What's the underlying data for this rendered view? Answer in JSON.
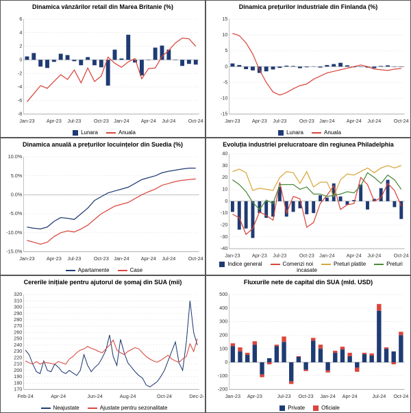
{
  "background": "#ffffff",
  "border": "#555555",
  "grid_color": "#dddddd",
  "axis_color": "#888888",
  "title_fontsize": 9,
  "tick_fontsize": 7,
  "charts": [
    {
      "title": "Dinamica vânzărilor retail din Marea Britanie (%)",
      "x_labels": [
        "Jan-23",
        "Apr-23",
        "Jul-23",
        "Oct-23",
        "Jan-24",
        "Apr-24",
        "Jul-24",
        "Oct-24"
      ],
      "ylim": [
        -8,
        6
      ],
      "ytick_step": 2,
      "bars": {
        "name": "Lunara",
        "color": "#1f3b73",
        "width": 0.6,
        "values": [
          0.5,
          1.0,
          -1.0,
          -1.2,
          -0.3,
          0.9,
          0.7,
          -0.2,
          -0.8,
          0.4,
          -0.8,
          -1.1,
          -3.8,
          1.5,
          0.2,
          3.7,
          -0.4,
          -2.3,
          0.0,
          1.8,
          2.1,
          1.5,
          0.0,
          -0.9,
          -0.6,
          -0.7
        ]
      },
      "lines": [
        {
          "name": "Anuala",
          "color": "#d9463d",
          "width": 1.2,
          "values": [
            -6.2,
            -5.0,
            -3.8,
            -4.2,
            -3.2,
            -2.2,
            -2.9,
            -1.5,
            -3.4,
            -1.2,
            -3.2,
            -2.4,
            0.4,
            -0.5,
            -1.1,
            -0.3,
            0.2,
            -2.8,
            -1.3,
            -1.2,
            0.5,
            1.4,
            2.5,
            3.2,
            3.1,
            2.0
          ]
        }
      ]
    },
    {
      "title": "Dinamica prețurilor industriale din Finlanda (%)",
      "x_labels": [
        "Jan-23",
        "Apr-23",
        "Jul-23",
        "Oct-23",
        "Jan-24",
        "Apr-24",
        "Jul-24",
        "Oct-24"
      ],
      "ylim": [
        -15,
        15
      ],
      "ytick_step": 5,
      "bars": {
        "name": "Lunara",
        "color": "#1f3b73",
        "width": 0.6,
        "values": [
          1.0,
          0.5,
          -0.8,
          -1.2,
          -2.0,
          -1.5,
          -0.9,
          -0.4,
          0.3,
          0.2,
          -0.5,
          -0.2,
          0.1,
          -0.3,
          0.5,
          0.8,
          1.2,
          0.4,
          -0.2,
          0.0,
          -0.3,
          -0.5,
          0.2,
          0.4,
          -0.1,
          0.0
        ]
      },
      "lines": [
        {
          "name": "Anuala",
          "color": "#d9463d",
          "width": 1.2,
          "values": [
            10.5,
            9.8,
            7.5,
            4.0,
            -1.0,
            -5.0,
            -8.0,
            -9.0,
            -8.2,
            -7.0,
            -6.0,
            -5.5,
            -4.0,
            -3.0,
            -2.0,
            -1.5,
            -1.0,
            -0.5,
            0.0,
            0.5,
            0.0,
            -0.8,
            -1.0,
            -1.2,
            -0.8,
            -0.6
          ]
        }
      ]
    },
    {
      "title": "Dinamica anuală a prețurilor locuințelor din Suedia (%)",
      "x_labels": [
        "Jan-23",
        "Apr-23",
        "Jul-23",
        "Oct-23",
        "Jan-24",
        "Apr-24",
        "Jul-24",
        "Oct-24"
      ],
      "ylim": [
        -15,
        10
      ],
      "ytick_step": 5,
      "y_fmt": "pct1",
      "lines": [
        {
          "name": "Apartamente",
          "color": "#1f3b73",
          "width": 1.2,
          "values": [
            -8.5,
            -8.8,
            -9.0,
            -8.5,
            -7.0,
            -6.0,
            -6.2,
            -6.5,
            -5.0,
            -3.5,
            -1.5,
            -0.5,
            0.5,
            1.0,
            1.5,
            2.0,
            3.0,
            4.0,
            4.5,
            5.0,
            5.8,
            6.2,
            6.5,
            6.8,
            7.0,
            7.0
          ]
        },
        {
          "name": "Case",
          "color": "#d9463d",
          "width": 1.2,
          "values": [
            -12.0,
            -12.5,
            -13.0,
            -12.5,
            -11.0,
            -10.0,
            -9.5,
            -9.8,
            -9.0,
            -8.0,
            -6.5,
            -5.0,
            -4.0,
            -3.0,
            -2.5,
            -2.0,
            -1.0,
            0.0,
            0.8,
            1.5,
            2.5,
            3.0,
            3.5,
            3.8,
            4.0,
            4.2
          ]
        }
      ]
    },
    {
      "title": "Evoluția industriei prelucratoare din regiunea Philadelphia",
      "x_labels": [
        "Jan-23",
        "Apr-23",
        "Jul-23",
        "Oct-23",
        "Jan-24",
        "Apr-24",
        "Jul-24",
        "Oct-24"
      ],
      "ylim": [
        -40,
        40
      ],
      "ytick_step": 10,
      "bars": {
        "name": "Indice general",
        "color": "#1f3b73",
        "width": 0.5,
        "values": [
          -9,
          -24,
          -23,
          -31,
          -10,
          -14,
          -13,
          12,
          -13,
          -9,
          -6,
          -11,
          -10,
          5,
          3,
          15,
          4,
          -3,
          1,
          14,
          -7,
          2,
          11,
          18,
          -5,
          -15
        ]
      },
      "lines": [
        {
          "name": "Comenzi noi",
          "color": "#d9463d",
          "width": 1.2,
          "values": [
            -11,
            -14,
            -28,
            -23,
            -9,
            -12,
            -16,
            16,
            -10,
            4,
            2,
            -22,
            -18,
            -2,
            5,
            13,
            -7,
            -3,
            -2,
            20,
            14,
            0,
            3,
            15,
            9,
            -4
          ]
        },
        {
          "name": "Preturi platite",
          "color": "#d9a73d",
          "width": 1.2,
          "values": [
            25,
            27,
            24,
            9,
            11,
            10,
            9,
            20,
            25,
            24,
            15,
            25,
            12,
            16,
            16,
            4,
            18,
            23,
            22,
            25,
            28,
            24,
            28,
            30,
            28,
            30
          ]
        },
        {
          "name": "Preturi incasate",
          "color": "#4a8a3a",
          "width": 1.2,
          "values": [
            18,
            14,
            8,
            -1,
            -7,
            1,
            -2,
            14,
            14,
            14,
            10,
            12,
            6,
            6,
            4,
            5,
            6,
            8,
            7,
            13,
            24,
            20,
            15,
            22,
            18,
            10
          ]
        }
      ]
    },
    {
      "title": "Cererile inițiale pentru ajutorul de șomaj din SUA (mii)",
      "x_labels": [
        "Feb-24",
        "Apr-24",
        "Jun-24",
        "Aug-24",
        "Oct-24",
        "Dec-24"
      ],
      "ylim": [
        170,
        320
      ],
      "ytick_step": 10,
      "lines": [
        {
          "name": "Neajustate",
          "color": "#1f3b73",
          "width": 1.0,
          "values": [
            232,
            225,
            210,
            198,
            195,
            215,
            200,
            198,
            210,
            205,
            198,
            195,
            200,
            196,
            192,
            200,
            225,
            208,
            198,
            205,
            210,
            220,
            232,
            256,
            222,
            208,
            249,
            228,
            212,
            205,
            198,
            192,
            188,
            177,
            174,
            178,
            182,
            190,
            200,
            215,
            230,
            245,
            212,
            200,
            245,
            310,
            260,
            240
          ]
        },
        {
          "name": "Ajustate pentru sezonalitate",
          "color": "#d9463d",
          "width": 1.0,
          "values": [
            215,
            212,
            210,
            214,
            210,
            213,
            212,
            211,
            210,
            214,
            212,
            210,
            218,
            222,
            228,
            232,
            234,
            238,
            235,
            233,
            230,
            228,
            234,
            240,
            248,
            232,
            228,
            225,
            230,
            233,
            236,
            234,
            228,
            222,
            218,
            215,
            213,
            216,
            220,
            224,
            218,
            215,
            213,
            218,
            222,
            242,
            230,
            250
          ]
        }
      ]
    },
    {
      "title": "Fluxurile nete de capital din SUA (mld. USD)",
      "x_labels": [
        "Jan-23",
        "Apr-23",
        "Jul-23",
        "Oct-23",
        "Jan-24",
        "Apr-24",
        "Jul-24",
        "Oct-24"
      ],
      "ylim": [
        -200,
        500
      ],
      "ytick_step": 100,
      "stacked_bars": {
        "width": 0.6,
        "series": [
          {
            "name": "Private",
            "color": "#1f3b73",
            "values": [
              120,
              80,
              55,
              130,
              -90,
              30,
              120,
              150,
              -140,
              40,
              -55,
              160,
              100,
              -60,
              70,
              95,
              45,
              -40,
              60,
              50,
              380,
              100,
              80,
              200
            ]
          },
          {
            "name": "Oficiale",
            "color": "#d9463d",
            "values": [
              20,
              30,
              15,
              25,
              -20,
              -15,
              10,
              40,
              -20,
              5,
              -10,
              20,
              30,
              -15,
              15,
              20,
              25,
              -30,
              10,
              15,
              50,
              10,
              -15,
              25
            ]
          }
        ]
      }
    }
  ],
  "legends": {
    "0": [
      {
        "k": "swb",
        "c": "#1f3b73",
        "t": "Lunara"
      },
      {
        "k": "sw",
        "c": "#d9463d",
        "t": "Anuala"
      }
    ],
    "1": [
      {
        "k": "swb",
        "c": "#1f3b73",
        "t": "Lunara"
      },
      {
        "k": "sw",
        "c": "#d9463d",
        "t": "Anuala"
      }
    ],
    "2": [
      {
        "k": "sw",
        "c": "#1f3b73",
        "t": "Apartamente"
      },
      {
        "k": "sw",
        "c": "#d9463d",
        "t": "Case"
      }
    ],
    "3": [
      {
        "k": "swb",
        "c": "#1f3b73",
        "t": "Indice general"
      },
      {
        "k": "sw",
        "c": "#d9463d",
        "t": "Comenzi noi"
      },
      {
        "k": "sw",
        "c": "#d9a73d",
        "t": "Preturi platite"
      },
      {
        "k": "sw",
        "c": "#4a8a3a",
        "t": "Preturi incasate"
      }
    ],
    "4": [
      {
        "k": "sw",
        "c": "#1f3b73",
        "t": "Neajustate"
      },
      {
        "k": "sw",
        "c": "#d9463d",
        "t": "Ajustate pentru sezonalitate"
      }
    ],
    "5": [
      {
        "k": "swb",
        "c": "#1f3b73",
        "t": "Private"
      },
      {
        "k": "swb",
        "c": "#d9463d",
        "t": "Oficiale"
      }
    ]
  }
}
